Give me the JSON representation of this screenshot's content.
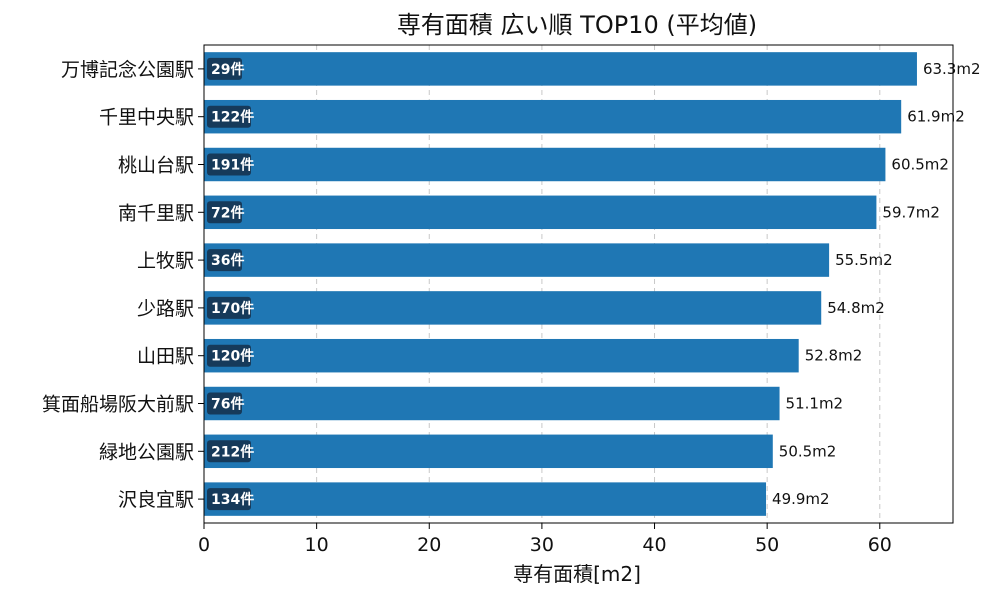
{
  "chart_data": {
    "type": "bar",
    "orientation": "horizontal",
    "title": "専有面積 広い順 TOP10 (平均値)",
    "xlabel": "専有面積[m2]",
    "ylabel": "",
    "xlim": [
      0,
      66.5
    ],
    "xticks": [
      0,
      10,
      20,
      30,
      40,
      50,
      60
    ],
    "grid": "x-dashed",
    "categories": [
      "万博記念公園駅",
      "千里中央駅",
      "桃山台駅",
      "南千里駅",
      "上牧駅",
      "少路駅",
      "山田駅",
      "箕面船場阪大前駅",
      "緑地公園駅",
      "沢良宜駅"
    ],
    "values": [
      63.3,
      61.9,
      60.5,
      59.7,
      55.5,
      54.8,
      52.8,
      51.1,
      50.5,
      49.9
    ],
    "value_labels": [
      "63.3m2",
      "61.9m2",
      "60.5m2",
      "59.7m2",
      "55.5m2",
      "54.8m2",
      "52.8m2",
      "51.1m2",
      "50.5m2",
      "49.9m2"
    ],
    "counts": [
      "29件",
      "122件",
      "191件",
      "72件",
      "36件",
      "170件",
      "120件",
      "76件",
      "212件",
      "134件"
    ],
    "colors": {
      "bar": "#1f77b4",
      "badge": "#163a5a",
      "grid": "#c8c8c8"
    }
  }
}
